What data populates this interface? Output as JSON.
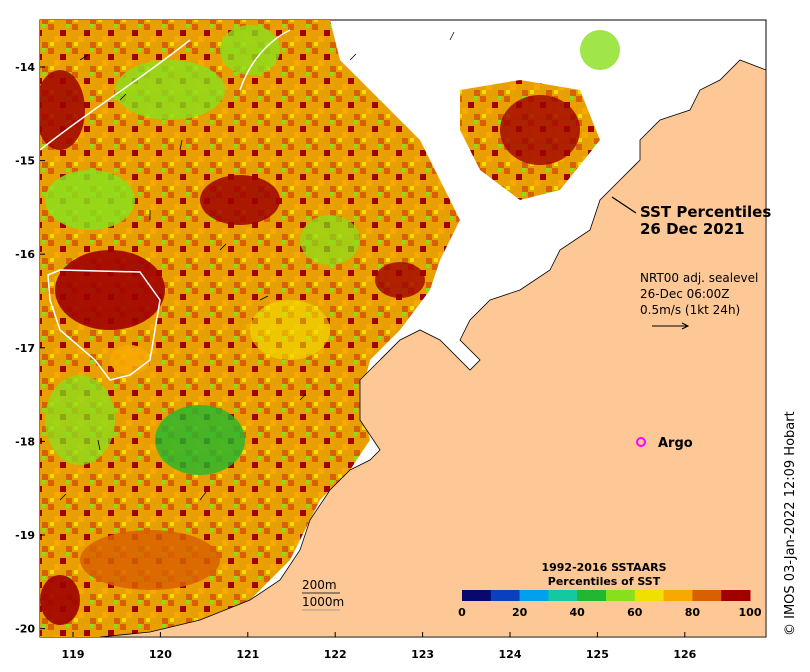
{
  "map": {
    "title_line1": "SST Percentiles",
    "title_line2": "26 Dec 2021",
    "current_label_line1": "NRT00 adj. sealevel",
    "current_label_line2": "26-Dec 06:00Z",
    "current_label_line3": "0.5m/s (1kt 24h)",
    "argo_label": "Argo",
    "depth_label_200": "200m",
    "depth_label_1000": "1000m",
    "colorbar_title_line1": "1992-2016 SSTAARS",
    "colorbar_title_line2": "Percentiles of SST",
    "colorbar_ticks": [
      "0",
      "20",
      "40",
      "60",
      "80",
      "100"
    ],
    "colorbar_colors": [
      "#08086e",
      "#0a3fc0",
      "#00a0ee",
      "#14c8a0",
      "#20b830",
      "#88e01c",
      "#f0e000",
      "#f8a800",
      "#d86000",
      "#a00000"
    ],
    "x_ticks": [
      "119",
      "120",
      "121",
      "122",
      "123",
      "124",
      "125",
      "126"
    ],
    "y_ticks": [
      "-14",
      "-15",
      "-16",
      "-17",
      "-18",
      "-19",
      "-20"
    ],
    "credit": "© IMOS 03-Jan-2022 12:09 Hobart",
    "colors": {
      "land": "#fdc896",
      "argo": "#ff00ff"
    }
  }
}
